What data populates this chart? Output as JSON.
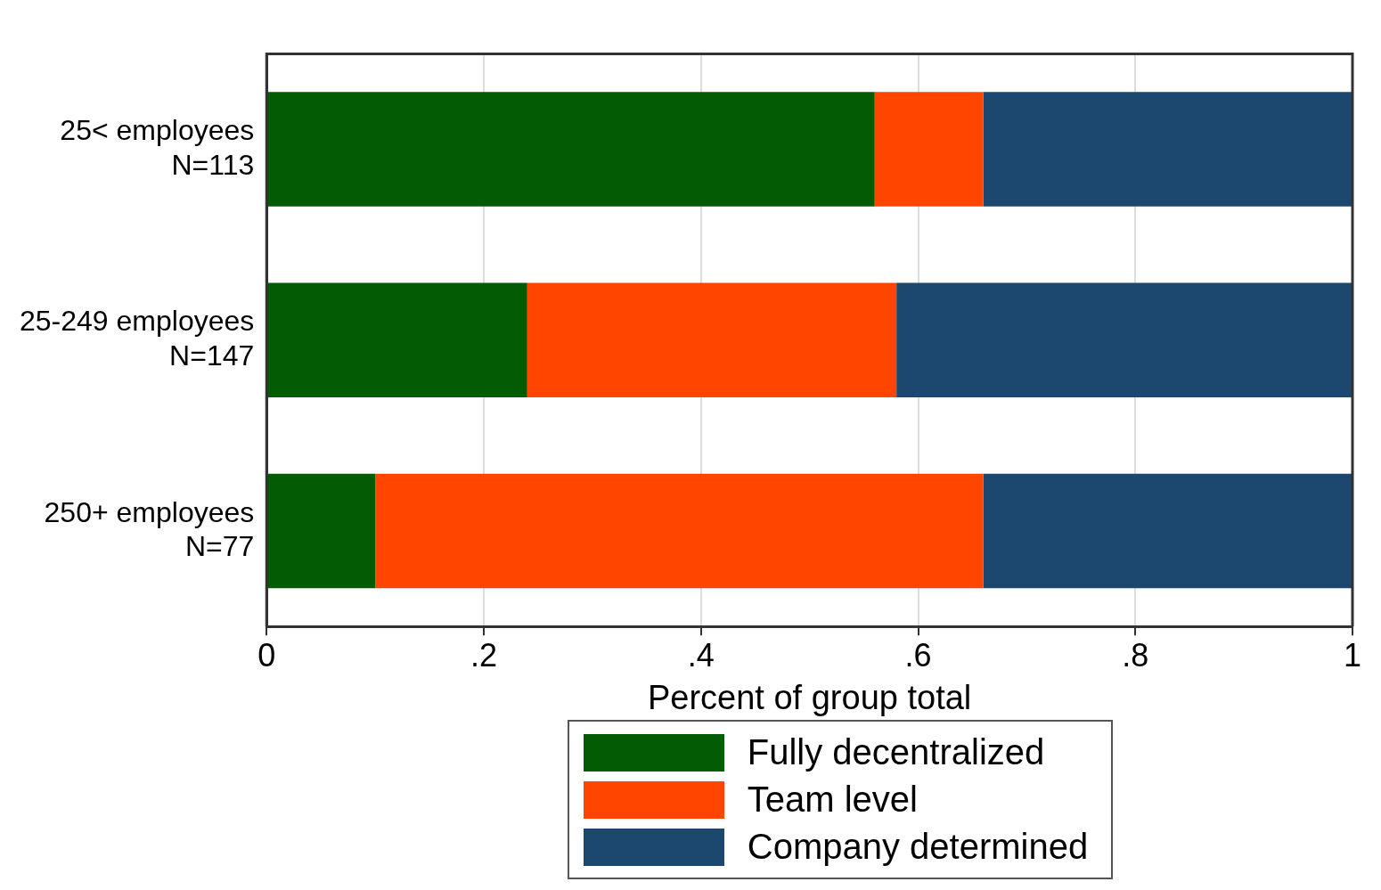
{
  "chart_data": {
    "type": "bar",
    "orientation": "horizontal",
    "stacked": true,
    "xlabel": "Percent of group total",
    "categories": [
      "25< employees\nN=113",
      "25-249 employees\nN=147",
      "250+ employees\nN=77"
    ],
    "series": [
      {
        "name": "Fully decentralized",
        "color": "#035c03",
        "values": [
          0.56,
          0.24,
          0.1
        ]
      },
      {
        "name": "Team level",
        "color": "#ff4500",
        "values": [
          0.1,
          0.34,
          0.56
        ]
      },
      {
        "name": "Company determined",
        "color": "#1c476f",
        "values": [
          0.34,
          0.42,
          0.34
        ]
      }
    ],
    "xlim": [
      0,
      1
    ],
    "xticks": [
      0,
      {
        "value": 0.2,
        "label": ".2"
      },
      {
        "value": 0.4,
        "label": ".4"
      },
      {
        "value": 0.6,
        "label": ".6"
      },
      {
        "value": 0.8,
        "label": ".8"
      },
      1
    ],
    "grid": "x",
    "legend": "bottom"
  }
}
